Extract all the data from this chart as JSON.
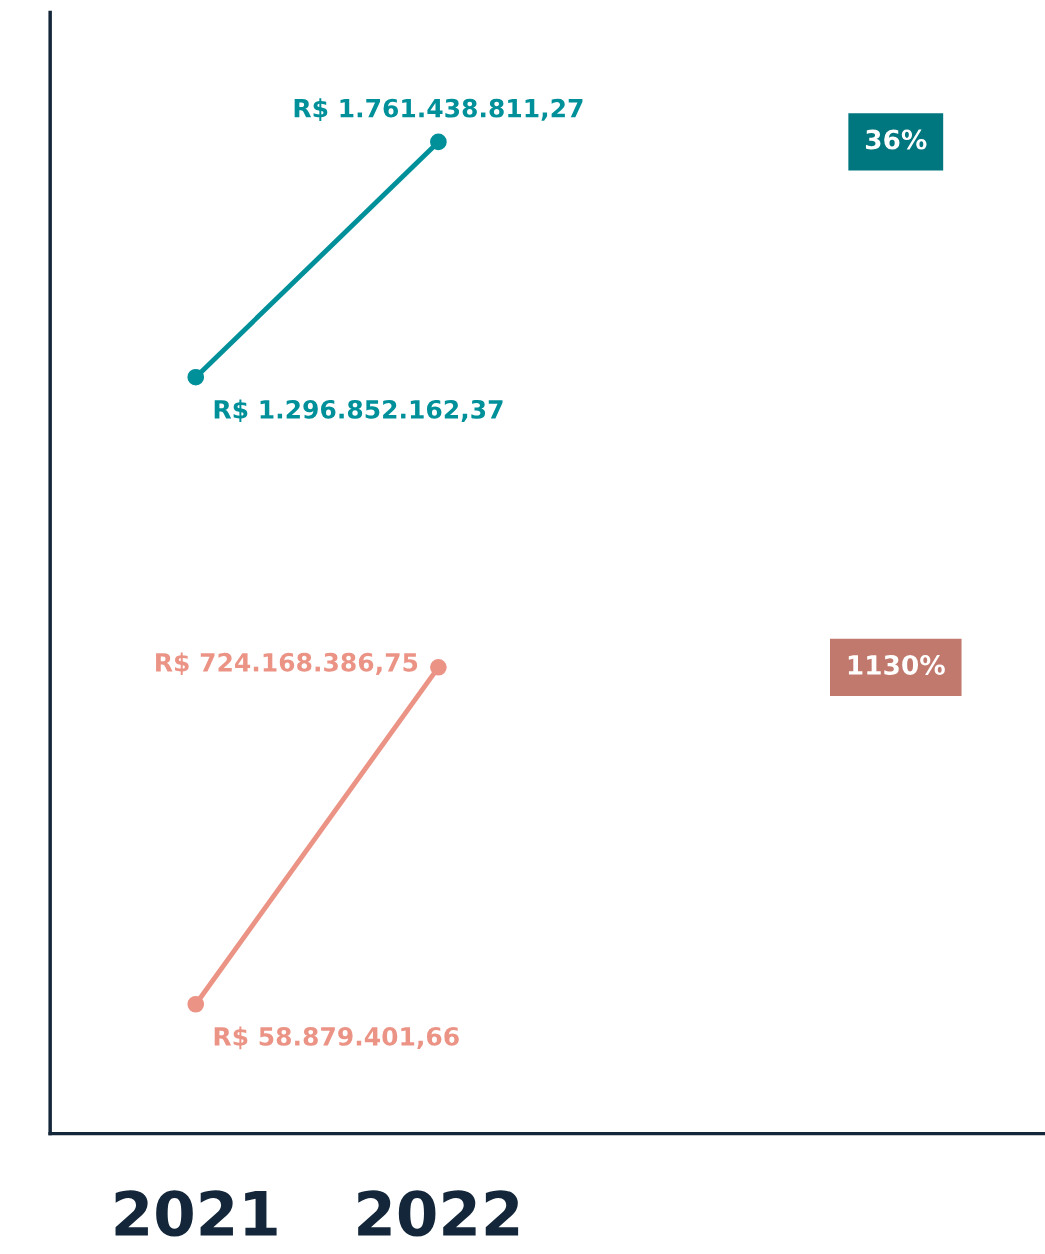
{
  "chart_data": {
    "type": "line",
    "categories": [
      "2021",
      "2022"
    ],
    "series": [
      {
        "color": "#00909a",
        "values": [
          1296852162.37,
          1761438811.27
        ],
        "value_labels": [
          "R$ 1.296.852.162,37",
          "R$ 1.761.438.811,27"
        ]
      },
      {
        "color": "#eb9486",
        "values": [
          58879401.66,
          724168386.75
        ],
        "value_labels": [
          "R$ 58.879.401,66",
          "R$ 724.168.386,75"
        ]
      }
    ],
    "annotations": [
      "36%",
      "1130%"
    ],
    "tick_labels": "x",
    "grid": false,
    "legend": false,
    "marker": "circle",
    "line_style": "solid"
  }
}
